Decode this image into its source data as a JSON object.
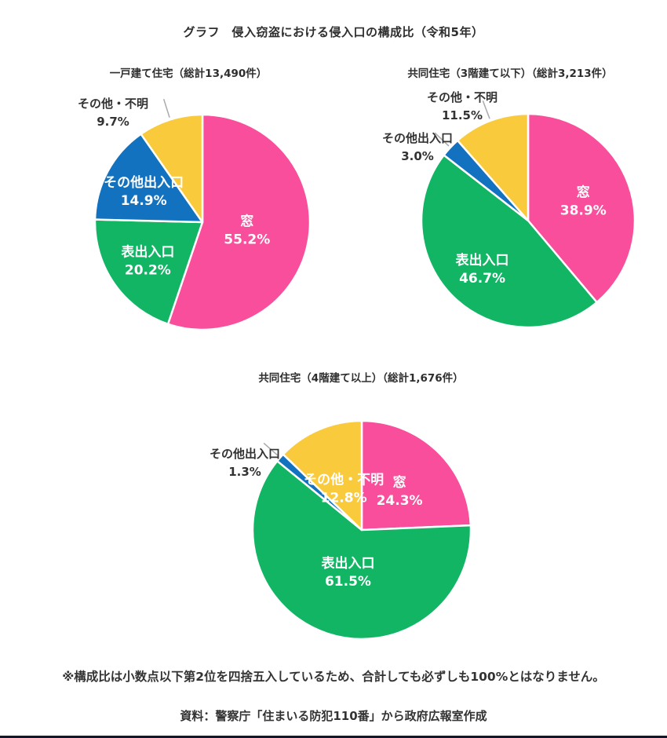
{
  "page": {
    "title": "グラフ　侵入窃盗における侵入口の構成比（令和5年）",
    "footnote": "※構成比は小数点以下第2位を四捨五入しているため、合計しても必ずしも100%とはなりません。",
    "source": "資料：警察庁「住まいる防犯110番」から政府広報室作成"
  },
  "colors": {
    "pink": "#F94E9B",
    "green": "#12B564",
    "blue": "#1272BF",
    "yellow": "#F9CA3B",
    "leader": "#AAAAAA",
    "text_dark": "#333333",
    "text_light": "#FFFFFF",
    "bottom_bar": "#14162A"
  },
  "chart_data": [
    {
      "type": "pie",
      "title": "一戸建て住宅（総計13,490件）",
      "total_label": "総計13,490件",
      "start_angle_deg": 0,
      "direction": "clockwise",
      "slices": [
        {
          "label": "窓",
          "value": 55.2,
          "pct": "55.2%",
          "color": "pink",
          "label_pos": "inside",
          "label_r": 0.42
        },
        {
          "label": "表出入口",
          "value": 20.2,
          "pct": "20.2%",
          "color": "green",
          "label_pos": "inside",
          "label_r": 0.62
        },
        {
          "label": "その他出入口",
          "value": 14.9,
          "pct": "14.9%",
          "color": "blue",
          "label_pos": "inside",
          "label_r": 0.62
        },
        {
          "label": "その他・不明",
          "value": 9.7,
          "pct": "9.7%",
          "color": "yellow",
          "label_pos": "outside",
          "label_offset": [
            -114,
            -141
          ]
        }
      ]
    },
    {
      "type": "pie",
      "title": "共同住宅（3階建て以下）（総計3,213件）",
      "total_label": "総計3,213件",
      "start_angle_deg": 0,
      "direction": "clockwise",
      "slices": [
        {
          "label": "窓",
          "value": 38.9,
          "pct": "38.9%",
          "color": "pink",
          "label_pos": "inside",
          "label_r": 0.55
        },
        {
          "label": "表出入口",
          "value": 46.7,
          "pct": "46.7%",
          "color": "green",
          "label_pos": "inside",
          "label_r": 0.62
        },
        {
          "label": "その他出入口",
          "value": 3.0,
          "pct": "3.0%",
          "color": "blue",
          "label_pos": "outside",
          "label_offset": [
            -141,
            -95
          ]
        },
        {
          "label": "その他・不明",
          "value": 11.5,
          "pct": "11.5%",
          "color": "yellow",
          "label_pos": "outside",
          "label_offset": [
            -84,
            -147
          ]
        }
      ]
    },
    {
      "type": "pie",
      "title": "共同住宅（4階建て以上）（総計1,676件）",
      "total_label": "総計1,676件",
      "start_angle_deg": 0,
      "direction": "clockwise",
      "slices": [
        {
          "label": "窓",
          "value": 24.3,
          "pct": "24.3%",
          "color": "pink",
          "label_pos": "inside",
          "label_r": 0.5
        },
        {
          "label": "表出入口",
          "value": 61.5,
          "pct": "61.5%",
          "color": "green",
          "label_pos": "inside",
          "label_r": 0.4
        },
        {
          "label": "その他出入口",
          "value": 1.3,
          "pct": "1.3%",
          "color": "blue",
          "label_pos": "outside",
          "label_offset": [
            -149,
            -87
          ]
        },
        {
          "label": "その他・不明",
          "value": 12.8,
          "pct": "12.8%",
          "color": "yellow",
          "label_pos": "inside",
          "label_r": 0.42
        }
      ]
    }
  ]
}
